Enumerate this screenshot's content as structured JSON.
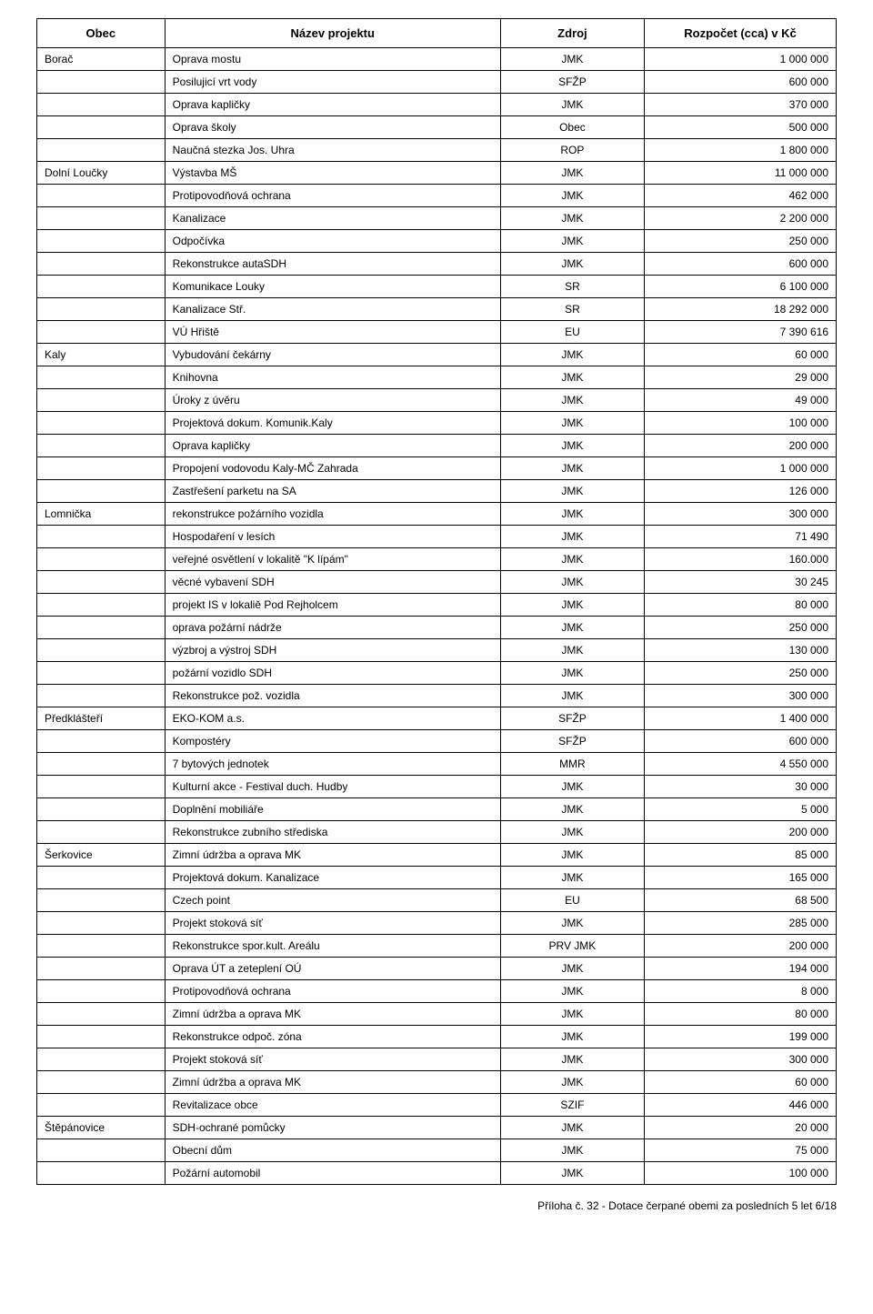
{
  "columns": [
    "Obec",
    "Název projektu",
    "Zdroj",
    "Rozpočet (cca) v Kč"
  ],
  "rows": [
    [
      "Borač",
      "Oprava mostu",
      "JMK",
      "1 000 000"
    ],
    [
      "",
      "Posilujicí vrt vody",
      "SFŽP",
      "600 000"
    ],
    [
      "",
      "Oprava kapličky",
      "JMK",
      "370 000"
    ],
    [
      "",
      "Oprava školy",
      "Obec",
      "500 000"
    ],
    [
      "",
      "Naučná stezka Jos. Uhra",
      "ROP",
      "1 800 000"
    ],
    [
      "Dolní Loučky",
      "Výstavba MŠ",
      "JMK",
      "11 000 000"
    ],
    [
      "",
      "Protipovodňová ochrana",
      "JMK",
      "462 000"
    ],
    [
      "",
      "Kanalizace",
      "JMK",
      "2 200 000"
    ],
    [
      "",
      "Odpočívka",
      "JMK",
      "250 000"
    ],
    [
      "",
      "Rekonstrukce autaSDH",
      "JMK",
      "600 000"
    ],
    [
      "",
      "Komunikace Louky",
      "SR",
      "6 100 000"
    ],
    [
      "",
      "Kanalizace Stř.",
      "SR",
      "18 292 000"
    ],
    [
      "",
      "VÚ Hřiště",
      "EU",
      "7 390 616"
    ],
    [
      "Kaly",
      "Vybudování čekárny",
      "JMK",
      "60 000"
    ],
    [
      "",
      "Knihovna",
      "JMK",
      "29 000"
    ],
    [
      "",
      "Úroky z úvěru",
      "JMK",
      "49 000"
    ],
    [
      "",
      "Projektová dokum. Komunik.Kaly",
      "JMK",
      "100 000"
    ],
    [
      "",
      "Oprava kapličky",
      "JMK",
      "200 000"
    ],
    [
      "",
      "Propojení vodovodu Kaly-MČ Zahrada",
      "JMK",
      "1 000 000"
    ],
    [
      "",
      "Zastřešení parketu na SA",
      "JMK",
      "126 000"
    ],
    [
      "Lomnička",
      "rekonstrukce požárního vozidla",
      "JMK",
      "300 000"
    ],
    [
      "",
      "Hospodaření v lesích",
      "JMK",
      "71 490"
    ],
    [
      "",
      "veřejné osvětlení v lokalitě \"K lípám\"",
      "JMK",
      "160.000"
    ],
    [
      "",
      "věcné vybavení SDH",
      "JMK",
      "30 245"
    ],
    [
      "",
      "projekt IS v lokaliě Pod Rejholcem",
      "JMK",
      "80 000"
    ],
    [
      "",
      "oprava požární nádrže",
      "JMK",
      "250 000"
    ],
    [
      "",
      "výzbroj a výstroj SDH",
      "JMK",
      "130 000"
    ],
    [
      "",
      "požární vozidlo SDH",
      "JMK",
      "250 000"
    ],
    [
      "",
      "Rekonstrukce pož. vozidla",
      "JMK",
      "300 000"
    ],
    [
      "Předklášteří",
      "EKO-KOM a.s.",
      "SFŽP",
      "1 400 000"
    ],
    [
      "",
      "Kompostéry",
      "SFŽP",
      "600 000"
    ],
    [
      "",
      "7 bytových jednotek",
      "MMR",
      "4 550 000"
    ],
    [
      "",
      "Kulturní akce - Festival duch. Hudby",
      "JMK",
      "30 000"
    ],
    [
      "",
      "Doplnění mobiliáře",
      "JMK",
      "5 000"
    ],
    [
      "",
      "Rekonstrukce zubního střediska",
      "JMK",
      "200 000"
    ],
    [
      "Šerkovice",
      "Zimní údržba a oprava MK",
      "JMK",
      "85 000"
    ],
    [
      "",
      "Projektová dokum. Kanalizace",
      "JMK",
      "165 000"
    ],
    [
      "",
      "Czech point",
      "EU",
      "68 500"
    ],
    [
      "",
      "Projekt stoková síť",
      "JMK",
      "285 000"
    ],
    [
      "",
      "Rekonstrukce spor.kult. Areálu",
      "PRV JMK",
      "200 000"
    ],
    [
      "",
      "Oprava ÚT a zeteplení OÚ",
      "JMK",
      "194 000"
    ],
    [
      "",
      "Protipovodňová ochrana",
      "JMK",
      "8 000"
    ],
    [
      "",
      "Zimní údržba a oprava MK",
      "JMK",
      "80 000"
    ],
    [
      "",
      "Rekonstrukce odpoč. zóna",
      "JMK",
      "199 000"
    ],
    [
      "",
      "Projekt stoková síť",
      "JMK",
      "300 000"
    ],
    [
      "",
      "Zimní údržba a oprava MK",
      "JMK",
      "60 000"
    ],
    [
      "",
      "Revitalizace obce",
      "SZIF",
      "446 000"
    ],
    [
      "Štěpánovice",
      "SDH-ochrané pomůcky",
      "JMK",
      "20 000"
    ],
    [
      "",
      "Obecní dům",
      "JMK",
      "75 000"
    ],
    [
      "",
      "Požární automobil",
      "JMK",
      "100 000"
    ]
  ],
  "footer": "Příloha č. 32 - Dotace čerpané obemi za posledních 5 let 6/18"
}
